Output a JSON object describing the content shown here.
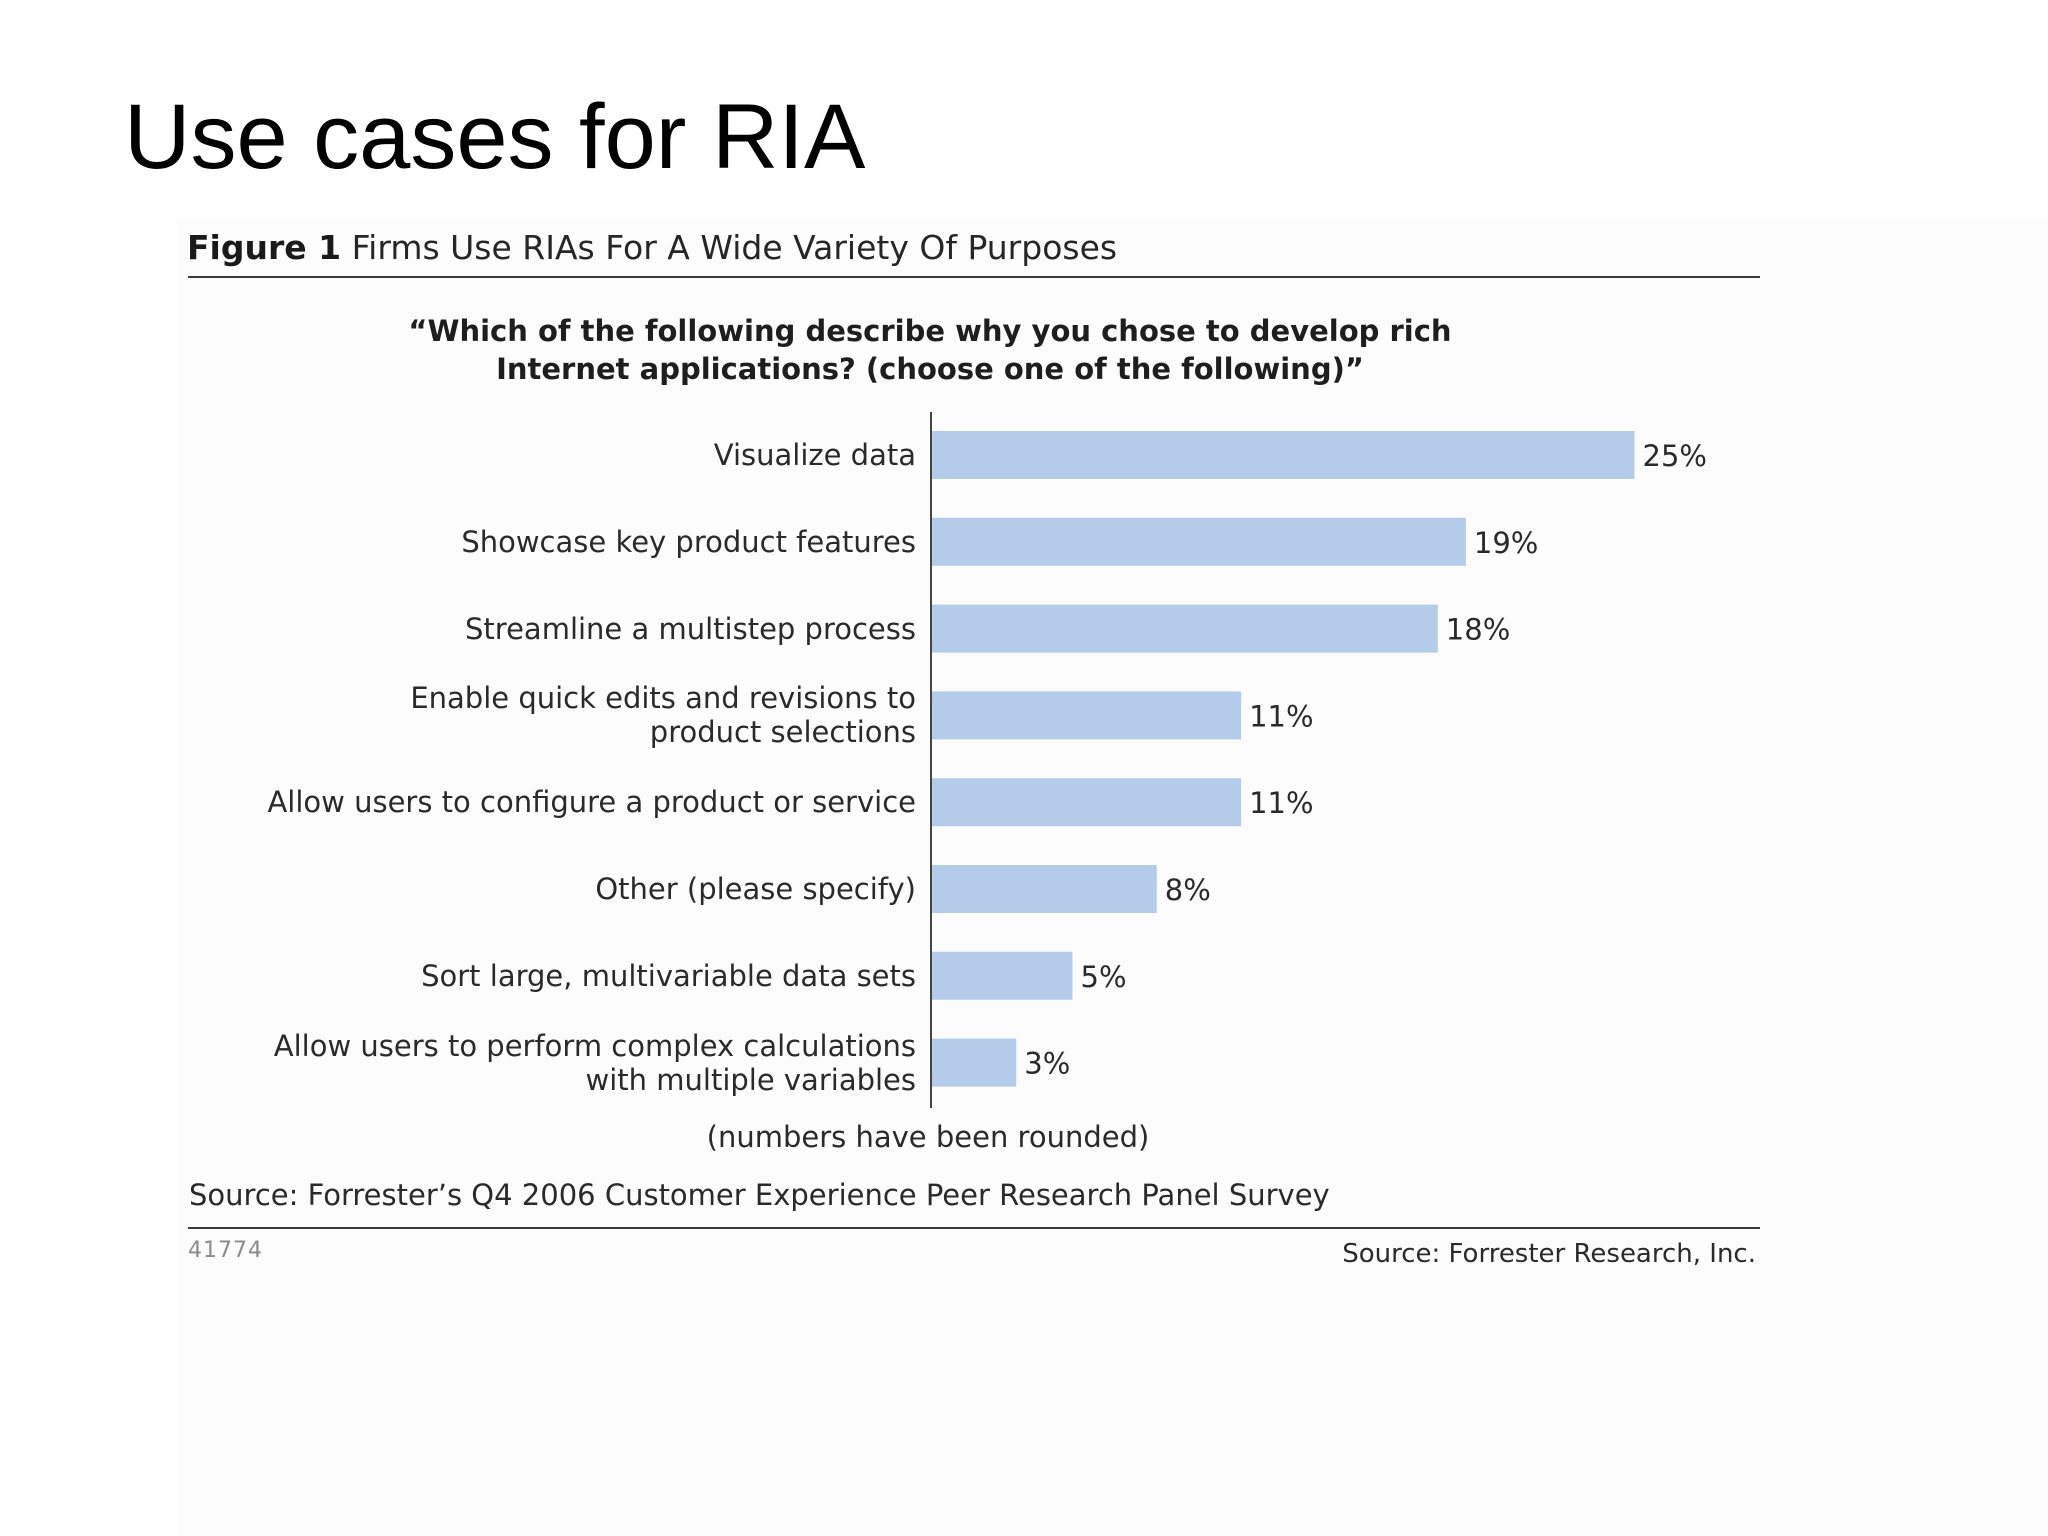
{
  "slide": {
    "title": "Use cases for RIA"
  },
  "figure": {
    "number": "Figure 1",
    "caption": "Firms Use RIAs For A Wide Variety Of Purposes",
    "question_line1": "“Which of the following describe why you chose to develop rich",
    "question_line2": "Internet applications? (choose one of the following)”",
    "note": "(numbers have been rounded)",
    "survey_source": "Source: Forrester’s Q4 2006 Customer Experience Peer Research Panel Survey",
    "figure_id": "41774",
    "publisher": "Source: Forrester Research, Inc."
  },
  "colors": {
    "bar": "#b4cce9",
    "axis": "#444444",
    "label_text": "#2a2a2a"
  },
  "chart_data": {
    "type": "bar",
    "orientation": "horizontal",
    "title": "“Which of the following describe why you chose to develop rich Internet applications? (choose one of the following)”",
    "xlabel": "",
    "ylabel": "",
    "unit": "%",
    "xlim": [
      0,
      25
    ],
    "grid": false,
    "legend": "none",
    "categories": [
      [
        "Visualize data"
      ],
      [
        "Showcase key product features"
      ],
      [
        "Streamline a multistep process"
      ],
      [
        "Enable quick edits and revisions to",
        "product selections"
      ],
      [
        "Allow users to configure a product or service"
      ],
      [
        "Other (please specify)"
      ],
      [
        "Sort large, multivariable data sets"
      ],
      [
        "Allow users to perform complex calculations",
        "with multiple variables"
      ]
    ],
    "values": [
      25,
      19,
      18,
      11,
      11,
      8,
      5,
      3
    ],
    "value_labels": [
      "25%",
      "19%",
      "18%",
      "11%",
      "11%",
      "8%",
      "5%",
      "3%"
    ]
  }
}
